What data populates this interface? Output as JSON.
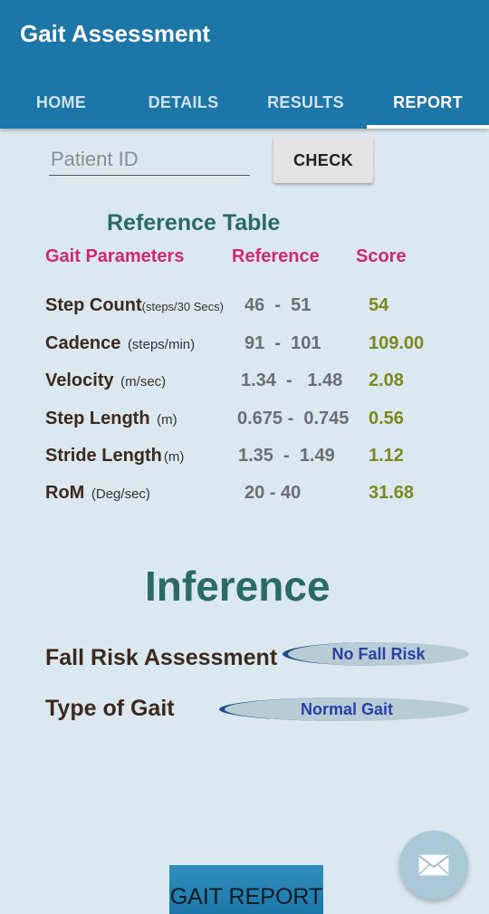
{
  "app": {
    "title": "Gait Assessment"
  },
  "tabs": [
    {
      "label": "HOME",
      "active": false
    },
    {
      "label": "DETAILS",
      "active": false
    },
    {
      "label": "RESULTS",
      "active": false
    },
    {
      "label": "REPORT",
      "active": true
    }
  ],
  "patient": {
    "placeholder": "Patient ID",
    "value": "",
    "check_label": "CHECK"
  },
  "reference": {
    "title": "Reference Table",
    "headers": {
      "param": "Gait Parameters",
      "reference": "Reference",
      "score": "Score"
    },
    "rows": [
      {
        "name": "Step Count",
        "unit": "(steps/30 Secs)",
        "reference": "46  -  51",
        "score": "54"
      },
      {
        "name": "Cadence",
        "unit": "(steps/min)",
        "reference": "91  -  101",
        "score": "109.00"
      },
      {
        "name": "Velocity",
        "unit": "(m/sec)",
        "reference": "1.34  -   1.48",
        "score": "2.08"
      },
      {
        "name": "Step Length",
        "unit": "(m)",
        "reference": "0.675 -  0.745",
        "score": "0.56"
      },
      {
        "name": "Stride Length",
        "unit": "(m)",
        "reference": "1.35  -  1.49",
        "score": "1.12"
      },
      {
        "name": "RoM",
        "unit": "(Deg/sec)",
        "reference": "20 - 40",
        "score": "31.68"
      }
    ]
  },
  "inference": {
    "title": "Inference",
    "fall_risk_label": "Fall Risk Assessment",
    "fall_risk_value": "No Fall Risk",
    "gait_type_label": "Type of Gait",
    "gait_type_value": "Normal Gait"
  },
  "actions": {
    "report_label": "GAIT REPORT",
    "fab_icon": "mail-icon"
  },
  "colors": {
    "primary": "#1c77a8",
    "background": "#dce8ef",
    "header_pink": "#d0296b",
    "score_olive": "#7a8a1f",
    "teal": "#2a6b63"
  }
}
